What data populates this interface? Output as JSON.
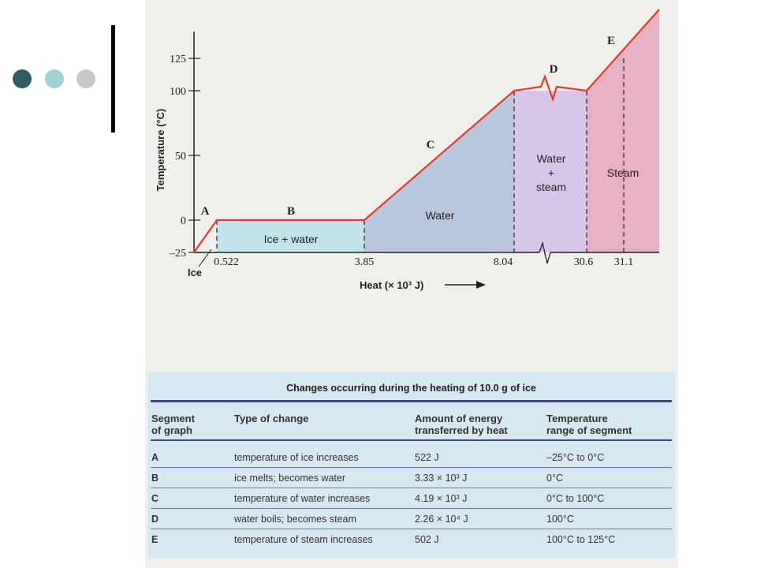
{
  "slide": {
    "dot_colors": [
      "#2f5d63",
      "#a1d1d4",
      "#c8c8c8"
    ],
    "accent_bar_color": "#000000"
  },
  "chart_data": {
    "type": "line",
    "ylabel": "Temperature (°C)",
    "xlabel": "Heat (× 10³ J)",
    "x_scale": "broken",
    "x_break_between": [
      8.04,
      30.6
    ],
    "ylim": [
      -25,
      150
    ],
    "y_ticks": [
      -25,
      0,
      50,
      100,
      125
    ],
    "y_tick_labels": [
      "–25",
      "0",
      "50",
      "100",
      "125"
    ],
    "x_tick_labels": [
      "0.522",
      "3.85",
      "8.04",
      "30.6",
      "31.1"
    ],
    "x_origin_label": "Ice",
    "line_color": "#e23a2a",
    "series": [
      {
        "points": [
          {
            "x": 0,
            "y": -25
          },
          {
            "x": 0.522,
            "y": 0
          },
          {
            "x": 3.85,
            "y": 0
          },
          {
            "x": 8.04,
            "y": 100
          },
          {
            "x": 30.6,
            "y": 100
          },
          {
            "x": 31.1,
            "y": 125
          }
        ]
      }
    ],
    "segments": [
      {
        "label": "A",
        "x": [
          0,
          0.522
        ]
      },
      {
        "label": "B",
        "x": [
          0.522,
          3.85
        ]
      },
      {
        "label": "C",
        "x": [
          3.85,
          8.04
        ]
      },
      {
        "label": "D",
        "x": [
          8.04,
          30.6
        ]
      },
      {
        "label": "E",
        "x": [
          30.6,
          31.1
        ]
      }
    ],
    "regions": [
      {
        "name": "Ice + water",
        "color": "#c1e4ea"
      },
      {
        "name": "Water",
        "color": "#b8c7dc"
      },
      {
        "name": "Water\n+\nsteam",
        "color": "#d7c6e9"
      },
      {
        "name": "Steam",
        "color": "#e6b2c3"
      }
    ]
  },
  "table": {
    "title": "Changes occurring during the heating of 10.0 g of ice",
    "headers": [
      "Segment\nof graph",
      "Type of change",
      "Amount of energy\ntransferred by heat",
      "Temperature\nrange of segment"
    ],
    "rows": [
      {
        "segment": "A",
        "change": "temperature of ice increases",
        "energy": "522 J",
        "range": "–25°C to 0°C"
      },
      {
        "segment": "B",
        "change": "ice melts; becomes water",
        "energy": "3.33 × 10³ J",
        "range": "0°C"
      },
      {
        "segment": "C",
        "change": "temperature of water increases",
        "energy": "4.19 × 10³ J",
        "range": "0°C to 100°C"
      },
      {
        "segment": "D",
        "change": "water boils; becomes steam",
        "energy": "2.26 × 10⁴ J",
        "range": "100°C"
      },
      {
        "segment": "E",
        "change": "temperature of steam increases",
        "energy": "502 J",
        "range": "100°C to 125°C"
      }
    ]
  }
}
